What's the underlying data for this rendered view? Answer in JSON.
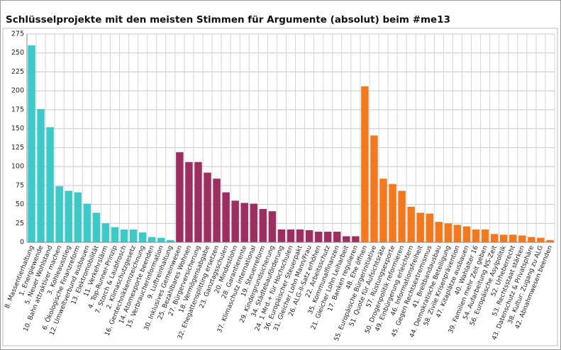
{
  "chart_data": {
    "type": "bar",
    "title": "Schlüsselprojekte mit den meisten Stimmen für Argumente (absolut) beim #me13",
    "categories": [
      "8. Massentierhaltung",
      "1. Energiewende",
      "5. Neuer Wohlstand",
      "10. Bahn attraktiver machen",
      "3. Kohleausstieg",
      "6. Ökologische Finanzreform",
      "12. Umweltverbund ausbauen",
      "13. Elektromobilität",
      "11. Verkehrslärm",
      "4. Top-Runner-Prinzip",
      "7. Storch & Laubfrosch",
      "2. Klimaschutzgesetz",
      "16. Gentechnikkennzeichnung",
      "14. Atomexporte beenden",
      "15. Verbraucherinformation",
      "9. Luftreinhaltung",
      "30. Inklusives Gemeinwesen",
      "25. Bezahlbares Wohnen",
      "27. Bürgerversicherung",
      "18. Vermögensabgabe",
      "32. Ehegattensplitting ersetzen",
      "23. Ganztagsschulen",
      "20. Mindestlohn",
      "28. Garantierente",
      "37. Klimaschutz international",
      "19. Steuerreform",
      "29. Kindergrundsicherung",
      "34. Städtebauförderung",
      "24. 1 Mrd.+ für Hochschulen",
      "36. Europäischer Steuerpakt",
      "31. Gleicher Lohn Mann/Frau",
      "26. ALG-II-Satz erhöhen",
      "22. Arbeitsschutz",
      "35. Kommunalfinanzen",
      "21. Gleicher Lohn Leiharbeit",
      "17. Banken regulieren",
      "48. Ehe öffnen",
      "55. Europäische Bürgerinitiative",
      "51. Quote für Aufsichtsräte",
      "57. Rüstungsexporte",
      "50. Drogenpolitik reformieren",
      "49. Einbürgerung erleichtern",
      "46. Informationsfreiheit",
      "45. Gegen Rechtsextremismus",
      "41. Breitbandausbau",
      "44. Demokratische Beteiligung",
      "58. Zivile Krisenprävention",
      "47. Kitaplätze ausbauen",
      "40. Wahlalter 16",
      "39. Familien mehr Zeit geben",
      "54. Aufarbeitung NS-Zeit",
      "56. Europäische Asylpolitik",
      "52. Urheberrecht",
      "53. Rechtsstaat stärken",
      "43. Datenschutz & Privatsphäre",
      "38. Kultur: Zugang zu ALG",
      "42. Abnahmwesen beenden"
    ],
    "values": [
      260,
      176,
      152,
      74,
      68,
      66,
      51,
      39,
      25,
      20,
      17,
      17,
      13,
      7,
      6,
      3,
      119,
      106,
      106,
      92,
      84,
      66,
      55,
      52,
      51,
      44,
      41,
      17,
      17,
      17,
      16,
      14,
      14,
      14,
      8,
      8,
      206,
      141,
      84,
      77,
      68,
      47,
      39,
      38,
      27,
      25,
      23,
      21,
      17,
      17,
      11,
      10,
      10,
      9,
      7,
      6,
      3
    ],
    "colors": [
      "#3ec9c9",
      "#3ec9c9",
      "#3ec9c9",
      "#3ec9c9",
      "#3ec9c9",
      "#3ec9c9",
      "#3ec9c9",
      "#3ec9c9",
      "#3ec9c9",
      "#3ec9c9",
      "#3ec9c9",
      "#3ec9c9",
      "#3ec9c9",
      "#3ec9c9",
      "#3ec9c9",
      "#3ec9c9",
      "#9b2f5f",
      "#9b2f5f",
      "#9b2f5f",
      "#9b2f5f",
      "#9b2f5f",
      "#9b2f5f",
      "#9b2f5f",
      "#9b2f5f",
      "#9b2f5f",
      "#9b2f5f",
      "#9b2f5f",
      "#9b2f5f",
      "#9b2f5f",
      "#9b2f5f",
      "#9b2f5f",
      "#9b2f5f",
      "#9b2f5f",
      "#9b2f5f",
      "#9b2f5f",
      "#9b2f5f",
      "#f27a1e",
      "#f27a1e",
      "#f27a1e",
      "#f27a1e",
      "#f27a1e",
      "#f27a1e",
      "#f27a1e",
      "#f27a1e",
      "#f27a1e",
      "#f27a1e",
      "#f27a1e",
      "#f27a1e",
      "#f27a1e",
      "#f27a1e",
      "#f27a1e",
      "#f27a1e",
      "#f27a1e",
      "#f27a1e",
      "#f27a1e",
      "#f27a1e",
      "#f27a1e"
    ],
    "ylim": [
      0,
      275
    ],
    "yticks": [
      0,
      25,
      50,
      75,
      100,
      125,
      150,
      175,
      200,
      225,
      250,
      275
    ],
    "grid": true
  }
}
